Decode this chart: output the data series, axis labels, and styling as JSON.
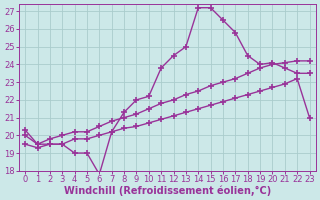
{
  "xlabel": "Windchill (Refroidissement éolien,°C)",
  "background_color": "#cce8e8",
  "line_color": "#993399",
  "grid_color": "#aacccc",
  "xlim": [
    -0.5,
    23.5
  ],
  "ylim": [
    18,
    27.4
  ],
  "xticks": [
    0,
    1,
    2,
    3,
    4,
    5,
    6,
    7,
    8,
    9,
    10,
    11,
    12,
    13,
    14,
    15,
    16,
    17,
    18,
    19,
    20,
    21,
    22,
    23
  ],
  "yticks": [
    18,
    19,
    20,
    21,
    22,
    23,
    24,
    25,
    26,
    27
  ],
  "line1_x": [
    0,
    1,
    2,
    3,
    4,
    5,
    6,
    7,
    8,
    9,
    10,
    11,
    12,
    13,
    14,
    15,
    16,
    17,
    18,
    19,
    20,
    21,
    22,
    23
  ],
  "line1_y": [
    20.3,
    19.5,
    19.5,
    19.5,
    19.0,
    19.0,
    17.8,
    20.2,
    21.3,
    22.0,
    22.2,
    23.8,
    24.5,
    25.0,
    27.2,
    27.2,
    26.5,
    25.8,
    24.5,
    24.0,
    24.1,
    23.8,
    23.5,
    23.5
  ],
  "line2_x": [
    0,
    1,
    2,
    3,
    4,
    5,
    6,
    7,
    8,
    9,
    10,
    11,
    12,
    13,
    14,
    15,
    16,
    17,
    18,
    19,
    20,
    21,
    22,
    23
  ],
  "line2_y": [
    20.0,
    19.5,
    19.8,
    20.0,
    20.2,
    20.2,
    20.5,
    20.8,
    21.0,
    21.2,
    21.5,
    21.8,
    22.0,
    22.3,
    22.5,
    22.8,
    23.0,
    23.2,
    23.5,
    23.8,
    24.0,
    24.1,
    24.2,
    24.2
  ],
  "line3_x": [
    0,
    1,
    2,
    3,
    4,
    5,
    6,
    7,
    8,
    9,
    10,
    11,
    12,
    13,
    14,
    15,
    16,
    17,
    18,
    19,
    20,
    21,
    22,
    23
  ],
  "line3_y": [
    19.5,
    19.3,
    19.5,
    19.5,
    19.8,
    19.8,
    20.0,
    20.2,
    20.4,
    20.5,
    20.7,
    20.9,
    21.1,
    21.3,
    21.5,
    21.7,
    21.9,
    22.1,
    22.3,
    22.5,
    22.7,
    22.9,
    23.2,
    21.0
  ],
  "marker": "+",
  "markersize": 4,
  "linewidth": 1.0,
  "xlabel_fontsize": 7,
  "tick_fontsize": 6
}
